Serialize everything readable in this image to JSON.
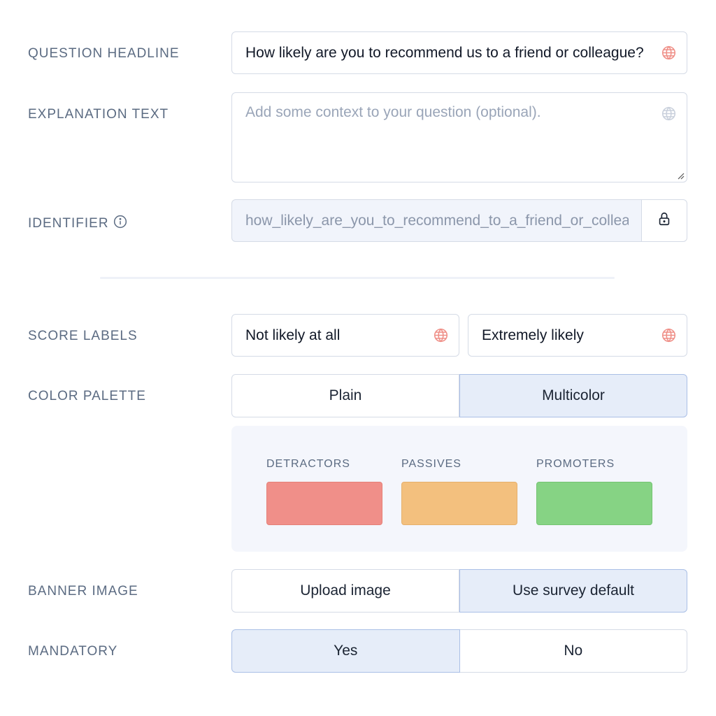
{
  "question_headline": {
    "label": "QUESTION HEADLINE",
    "value": "How likely are you to recommend us to a friend or colleague?"
  },
  "explanation_text": {
    "label": "EXPLANATION TEXT",
    "placeholder": "Add some context to your question (optional)."
  },
  "identifier": {
    "label": "IDENTIFIER",
    "value": "how_likely_are_you_to_recommend_to_a_friend_or_colleague"
  },
  "score_labels": {
    "label": "SCORE LABELS",
    "low": "Not likely at all",
    "high": "Extremely likely"
  },
  "color_palette": {
    "label": "COLOR PALETTE",
    "options": [
      "Plain",
      "Multicolor"
    ],
    "selected": "Multicolor",
    "categories": [
      {
        "name": "DETRACTORS",
        "color": "#f08f89"
      },
      {
        "name": "PASSIVES",
        "color": "#f3c07e"
      },
      {
        "name": "PROMOTERS",
        "color": "#86d384"
      }
    ]
  },
  "banner_image": {
    "label": "BANNER IMAGE",
    "options": [
      "Upload image",
      "Use survey default"
    ],
    "selected": "Use survey default"
  },
  "mandatory": {
    "label": "MANDATORY",
    "options": [
      "Yes",
      "No"
    ],
    "selected": "Yes"
  },
  "colors": {
    "accent_bg": "#e6edf9",
    "globe_icon": "#ef8f87"
  }
}
